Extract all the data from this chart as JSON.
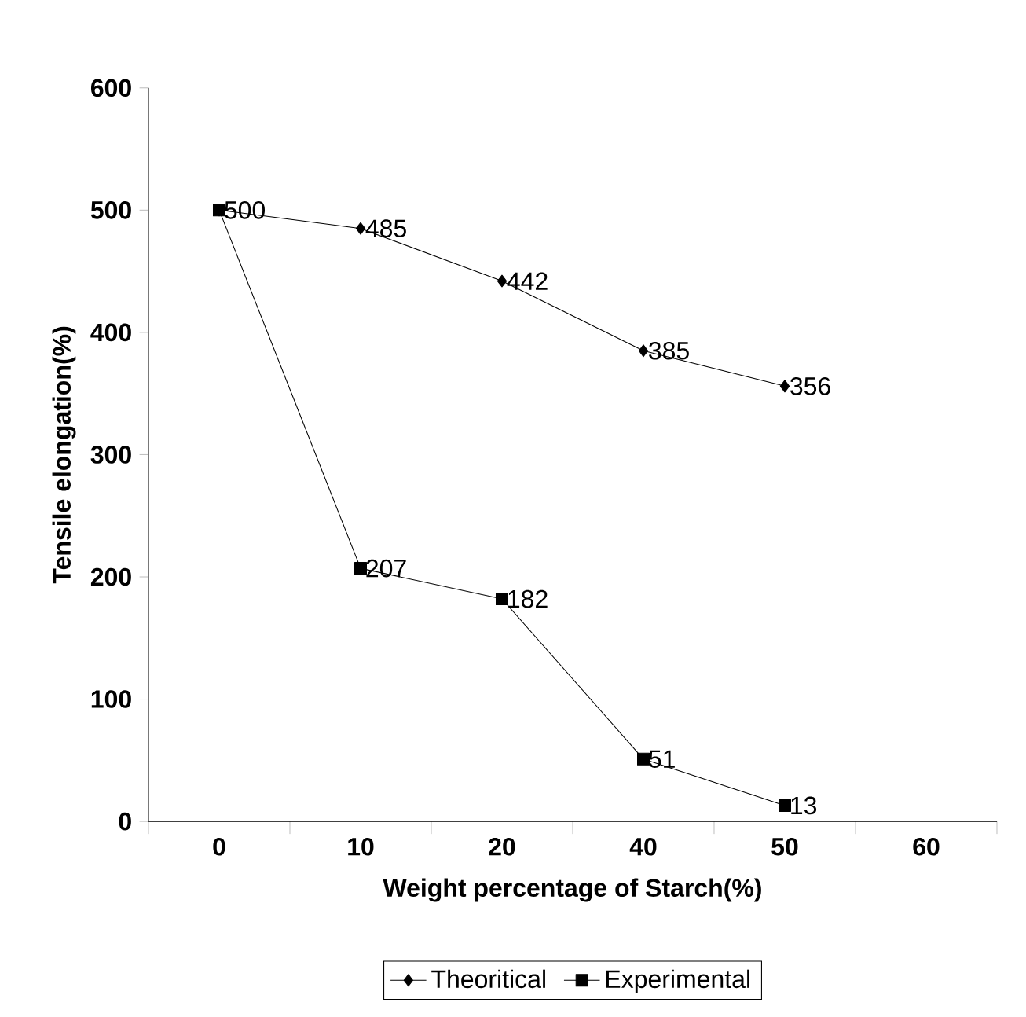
{
  "chart_data": {
    "type": "line",
    "xlabel": "Weight percentage of Starch(%)",
    "ylabel": "Tensile elongation(%)",
    "categories": [
      "0",
      "10",
      "20",
      "40",
      "50",
      "60"
    ],
    "series": [
      {
        "name": "Theoritical",
        "color": "#000000",
        "marker": "diamond",
        "values": [
          500,
          485,
          442,
          385,
          356,
          null
        ],
        "value_labels": [
          null,
          "485",
          "442",
          "385",
          "356",
          null
        ]
      },
      {
        "name": "Experimental",
        "color": "#000000",
        "marker": "square",
        "values": [
          500,
          207,
          182,
          51,
          13,
          null
        ],
        "value_labels": [
          "500",
          "207",
          "182",
          "51",
          "13",
          null
        ]
      }
    ],
    "ylim": [
      0,
      600
    ],
    "yticks": [
      0,
      100,
      200,
      300,
      400,
      500,
      600
    ],
    "grid": false,
    "legend": "bottom",
    "line_style": "solid"
  }
}
